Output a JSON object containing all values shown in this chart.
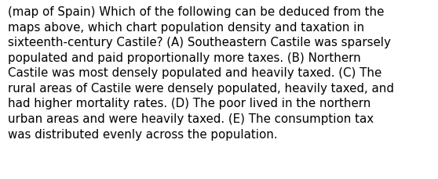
{
  "lines": [
    "(map of Spain) Which of the following can be deduced from the",
    "maps above, which chart population density and taxation in",
    "sixteenth-century Castile? (A) Southeastern Castile was sparsely",
    "populated and paid proportionally more taxes. (B) Northern",
    "Castile was most densely populated and heavily taxed. (C) The",
    "rural areas of Castile were densely populated, heavily taxed, and",
    "had higher mortality rates. (D) The poor lived in the northern",
    "urban areas and were heavily taxed. (E) The consumption tax",
    "was distributed evenly across the population."
  ],
  "background_color": "#ffffff",
  "text_color": "#000000",
  "font_size": 10.8,
  "font_family": "DejaVu Sans",
  "fig_width": 5.58,
  "fig_height": 2.3,
  "dpi": 100
}
